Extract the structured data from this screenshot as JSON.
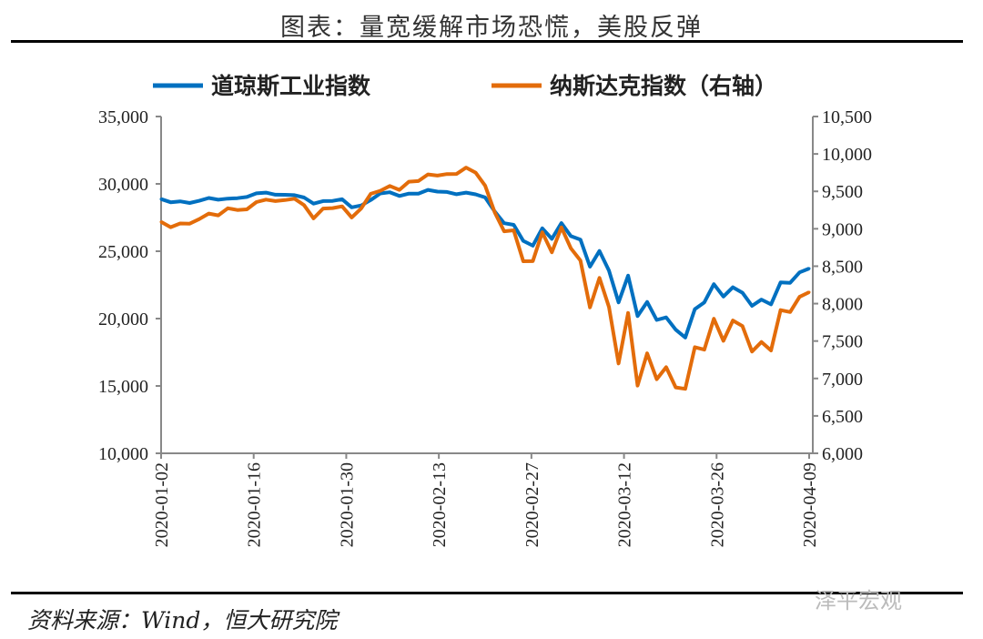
{
  "title": "图表：量宽缓解市场恐慌，美股反弹",
  "source": "资料来源：Wind，恒大研究院",
  "watermark": "泽平宏观",
  "chart_data": {
    "type": "line",
    "x_ticks": [
      "2020-01-02",
      "2020-01-16",
      "2020-01-30",
      "2020-02-13",
      "2020-02-27",
      "2020-03-12",
      "2020-03-26",
      "2020-04-09"
    ],
    "left_ylim": [
      10000,
      35000
    ],
    "left_ticks": [
      "10,000",
      "15,000",
      "20,000",
      "25,000",
      "30,000",
      "35,000"
    ],
    "right_ylim": [
      6000,
      10500
    ],
    "right_ticks": [
      "6,000",
      "6,500",
      "7,000",
      "7,500",
      "8,000",
      "8,500",
      "9,000",
      "9,500",
      "10,000",
      "10,500"
    ],
    "legend_position": "top",
    "series": [
      {
        "name": "道琼斯工业指数",
        "axis": "left",
        "color": "#0070C0",
        "values": [
          28869,
          28635,
          28704,
          28583,
          28745,
          28956,
          28824,
          28907,
          28940,
          29030,
          29297,
          29348,
          29196,
          29186,
          29160,
          28989,
          28535,
          28723,
          28734,
          28859,
          28256,
          28400,
          28807,
          29291,
          29380,
          29103,
          29277,
          29276,
          29551,
          29424,
          29398,
          29232,
          29348,
          29220,
          28992,
          27961,
          27081,
          26957,
          25767,
          25409,
          26703,
          25917,
          27091,
          26122,
          25865,
          23851,
          25018,
          23553,
          21201,
          23186,
          20189,
          21237,
          19899,
          20087,
          19174,
          18592,
          20705,
          21201,
          22552,
          21637,
          22327,
          21917,
          20944,
          21413,
          21053,
          22680,
          22654,
          23434,
          23719
        ]
      },
      {
        "name": "纳斯达克指数（右轴）",
        "axis": "right",
        "color": "#E36C0A",
        "values": [
          9092,
          9021,
          9071,
          9068,
          9129,
          9203,
          9179,
          9274,
          9251,
          9259,
          9357,
          9389,
          9370,
          9383,
          9402,
          9315,
          9139,
          9270,
          9276,
          9299,
          9151,
          9273,
          9467,
          9508,
          9572,
          9520,
          9629,
          9638,
          9726,
          9711,
          9731,
          9732,
          9818,
          9751,
          9577,
          9221,
          8966,
          8980,
          8566,
          8567,
          8953,
          8685,
          9019,
          8739,
          8576,
          7950,
          8344,
          7953,
          7201,
          7875,
          6905,
          7335,
          6990,
          7151,
          6880,
          6861,
          7418,
          7385,
          7798,
          7503,
          7774,
          7700,
          7360,
          7487,
          7374,
          7913,
          7887,
          8091,
          8153
        ]
      }
    ]
  }
}
